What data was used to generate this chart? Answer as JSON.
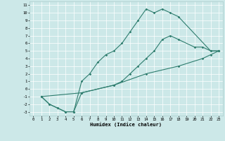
{
  "xlabel": "Humidex (Indice chaleur)",
  "bg_color": "#cce8e8",
  "grid_color": "#ffffff",
  "line_color": "#2e7d6e",
  "xlim": [
    -0.5,
    23.5
  ],
  "ylim": [
    -3.5,
    11.5
  ],
  "xticks": [
    0,
    1,
    2,
    3,
    4,
    5,
    6,
    7,
    8,
    9,
    10,
    11,
    12,
    13,
    14,
    15,
    16,
    17,
    18,
    19,
    20,
    21,
    22,
    23
  ],
  "yticks": [
    -3,
    -2,
    -1,
    0,
    1,
    2,
    3,
    4,
    5,
    6,
    7,
    8,
    9,
    10,
    11
  ],
  "curve1_x": [
    1,
    2,
    3,
    4,
    5,
    6,
    7,
    8,
    9,
    10,
    11,
    12,
    13,
    14,
    15,
    16,
    17,
    18,
    22,
    23
  ],
  "curve1_y": [
    -1,
    -2,
    -2.5,
    -3,
    -3,
    1,
    2,
    3.5,
    4.5,
    5,
    6,
    7.5,
    9,
    10.5,
    10,
    10.5,
    10,
    9.5,
    5,
    5
  ],
  "curve2_x": [
    1,
    2,
    3,
    4,
    5,
    6,
    10,
    11,
    12,
    13,
    14,
    15,
    16,
    17,
    18,
    20,
    21,
    22,
    23
  ],
  "curve2_y": [
    -1,
    -2,
    -2.5,
    -3,
    -3,
    -0.5,
    0.5,
    1,
    2,
    3,
    4,
    5,
    6.5,
    7,
    6.5,
    5.5,
    5.5,
    5,
    5
  ],
  "curve3_x": [
    1,
    6,
    10,
    14,
    18,
    21,
    22,
    23
  ],
  "curve3_y": [
    -1,
    -0.5,
    0.5,
    2,
    3,
    4,
    4.5,
    5
  ]
}
